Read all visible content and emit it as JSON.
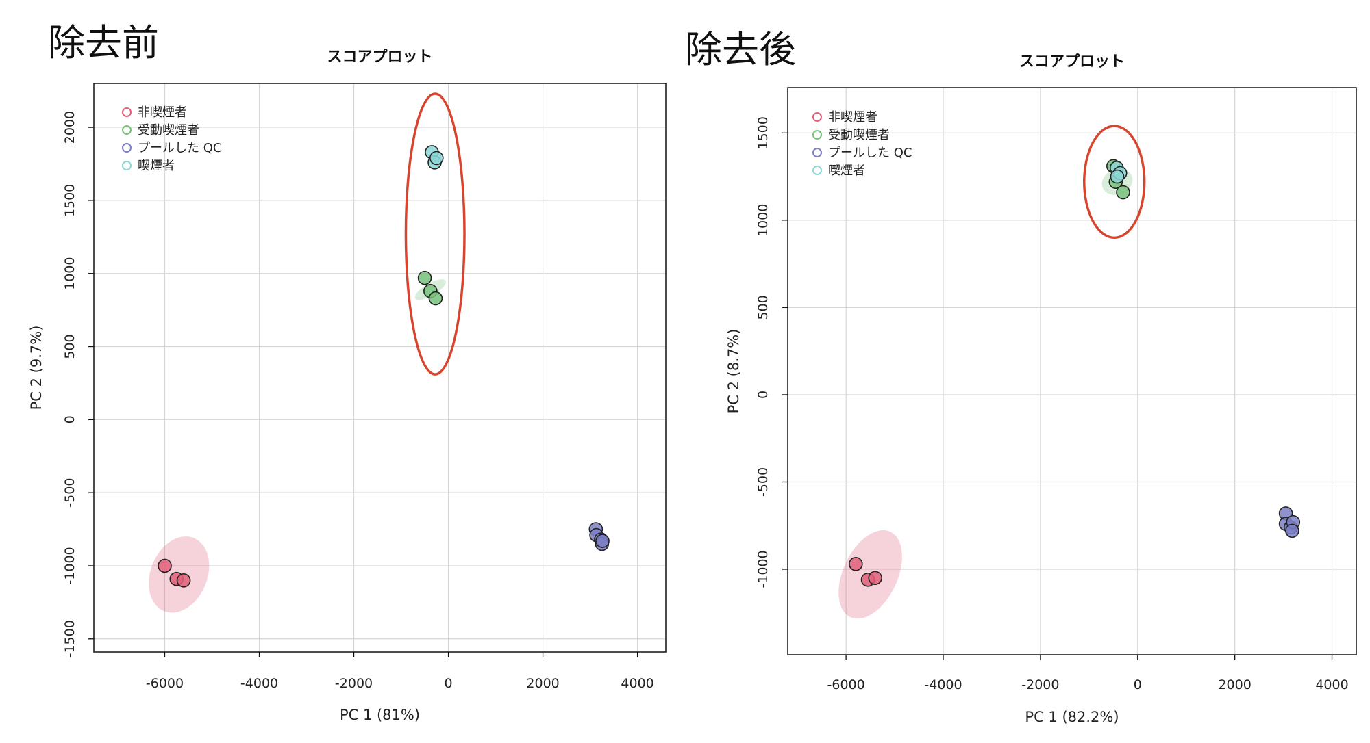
{
  "panels": [
    {
      "heading": "除去前"
    },
    {
      "heading": "除去後"
    }
  ],
  "legend": [
    {
      "label": "非喫煙者",
      "color": "#e0607a"
    },
    {
      "label": "受動喫煙者",
      "color": "#77c17a"
    },
    {
      "label": "プールした QC",
      "color": "#7b7fc4"
    },
    {
      "label": "喫煙者",
      "color": "#8cd6d6"
    }
  ],
  "chart_data": [
    {
      "type": "scatter",
      "title": "スコアプロット",
      "xlabel": "PC 1 (81%)",
      "ylabel": "PC 2 (9.7%)",
      "xlim": [
        -7500,
        4600
      ],
      "ylim": [
        -1590,
        2300
      ],
      "xticks": [
        -6000,
        -4000,
        -2000,
        0,
        2000,
        4000
      ],
      "yticks": [
        -1500,
        -1000,
        -500,
        0,
        500,
        1000,
        1500,
        2000
      ],
      "grid": true,
      "legend_position": "top-left",
      "series": [
        {
          "name": "非喫煙者",
          "color": "#e0607a",
          "points": [
            [
              -6000,
              -1000
            ],
            [
              -5750,
              -1090
            ],
            [
              -5600,
              -1100
            ]
          ],
          "ellipse": {
            "cx": -5700,
            "cy": -1060,
            "rx": 600,
            "ry": 90,
            "angle": -22
          }
        },
        {
          "name": "受動喫煙者",
          "color": "#77c17a",
          "points": [
            [
              -500,
              970
            ],
            [
              -380,
              880
            ],
            [
              -270,
              830
            ]
          ],
          "ellipse": {
            "cx": -380,
            "cy": 890,
            "rx": 130,
            "ry": 40,
            "angle": -60
          }
        },
        {
          "name": "プールした QC",
          "color": "#7b7fc4",
          "points": [
            [
              3120,
              -750
            ],
            [
              3130,
              -790
            ],
            [
              3230,
              -820
            ],
            [
              3250,
              -850
            ],
            [
              3260,
              -830
            ]
          ],
          "ellipse": null
        },
        {
          "name": "喫煙者",
          "color": "#8cd6d6",
          "points": [
            [
              -350,
              1830
            ],
            [
              -290,
              1760
            ],
            [
              -250,
              1790
            ]
          ],
          "ellipse": null
        }
      ],
      "highlight_ellipse": {
        "cx": -280,
        "cy": 1270,
        "rx": 620,
        "ry": 960,
        "color": "#d8452e"
      }
    },
    {
      "type": "scatter",
      "title": "スコアプロット",
      "xlabel": "PC 1 (82.2%)",
      "ylabel": "PC 2 (8.7%)",
      "xlim": [
        -7200,
        4500
      ],
      "ylim": [
        -1490,
        1760
      ],
      "xticks": [
        -6000,
        -4000,
        -2000,
        0,
        2000,
        4000
      ],
      "yticks": [
        -1000,
        -500,
        0,
        500,
        1000,
        1500
      ],
      "grid": true,
      "legend_position": "top-left",
      "series": [
        {
          "name": "非喫煙者",
          "color": "#e0607a",
          "points": [
            [
              -5800,
              -970
            ],
            [
              -5550,
              -1060
            ],
            [
              -5400,
              -1050
            ]
          ],
          "ellipse": {
            "cx": -5500,
            "cy": -1030,
            "rx": 560,
            "ry": 90,
            "angle": -25
          }
        },
        {
          "name": "受動喫煙者",
          "color": "#77c17a",
          "points": [
            [
              -500,
              1310
            ],
            [
              -450,
              1220
            ],
            [
              -300,
              1160
            ]
          ],
          "ellipse": {
            "cx": -420,
            "cy": 1220,
            "rx": 260,
            "ry": 30,
            "angle": -68
          }
        },
        {
          "name": "プールした QC",
          "color": "#7b7fc4",
          "points": [
            [
              3050,
              -680
            ],
            [
              3050,
              -740
            ],
            [
              3150,
              -760
            ],
            [
              3200,
              -730
            ],
            [
              3180,
              -780
            ]
          ],
          "ellipse": null
        },
        {
          "name": "喫煙者",
          "color": "#8cd6d6",
          "points": [
            [
              -430,
              1300
            ],
            [
              -360,
              1270
            ],
            [
              -420,
              1250
            ]
          ],
          "ellipse": null
        }
      ],
      "highlight_ellipse": {
        "cx": -480,
        "cy": 1220,
        "rx": 620,
        "ry": 320,
        "color": "#d8452e"
      }
    }
  ]
}
